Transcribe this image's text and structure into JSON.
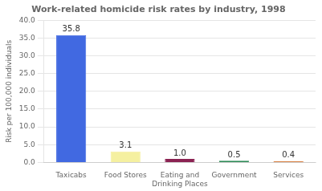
{
  "chart_data": {
    "type": "bar",
    "title": "Work-related homicide risk rates by industry, 1998",
    "categories": [
      "Taxicabs",
      "Food Stores",
      "Eating and\nDrinking Places",
      "Government",
      "Services"
    ],
    "values": [
      35.8,
      3.1,
      1.0,
      0.5,
      0.4
    ],
    "value_labels": [
      "35.8",
      "3.1",
      "1.0",
      "0.5",
      "0.4"
    ],
    "colors": [
      "#4169E1",
      "#F5F0A0",
      "#8B2252",
      "#2E8B57",
      "#D2691E"
    ],
    "ylabel": "Risk per 100,000 individuals",
    "ylim": [
      0,
      40
    ],
    "yticks": [
      {
        "value": 0,
        "label": "0.0"
      },
      {
        "value": 5,
        "label": "5.0"
      },
      {
        "value": 10,
        "label": "10.0"
      },
      {
        "value": 15,
        "label": "15.0"
      },
      {
        "value": 20,
        "label": "20.0"
      },
      {
        "value": 25,
        "label": "25.0"
      },
      {
        "value": 30,
        "label": "30.0"
      },
      {
        "value": 35,
        "label": "35.0"
      },
      {
        "value": 40,
        "label": "40.0"
      }
    ],
    "grid": true,
    "data_labels": true
  }
}
